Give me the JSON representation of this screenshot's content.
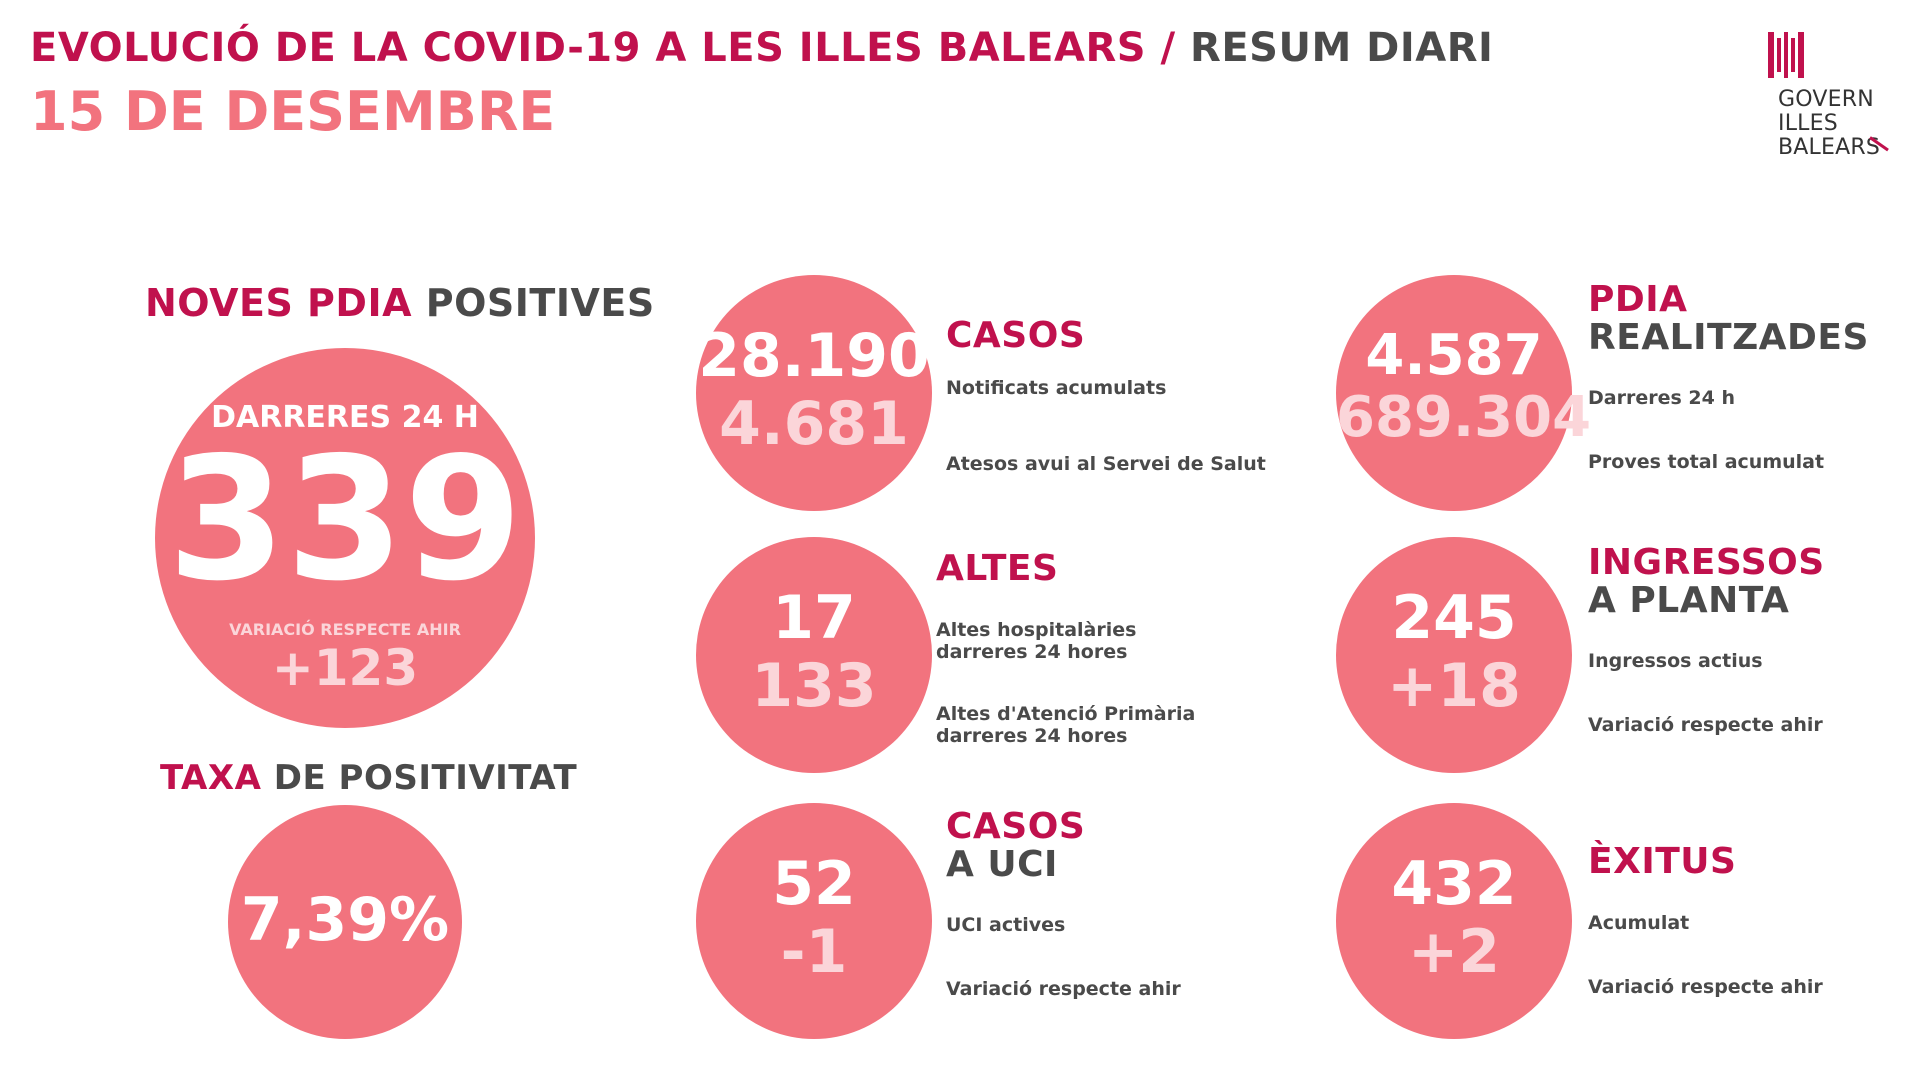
{
  "header": {
    "title_part1": "EVOLUCIÓ DE LA COVID-19 A LES ILLES BALEARS /",
    "title_part2": "RESUM DIARI",
    "date": "15 DE DESEMBRE"
  },
  "logo": {
    "line1": "GOVERN",
    "line2": "ILLES",
    "line3": "BALEARS",
    "icon": "coat-of-arms-stripes"
  },
  "colors": {
    "crimson": "#c0114d",
    "pink": "#f2737e",
    "light_pink": "#fbd5d9",
    "gray": "#4a4a4a"
  },
  "positives": {
    "heading_part1": "NOVES PDIA",
    "heading_part2": "POSITIVES",
    "subtitle": "DARRERES 24 H",
    "value": "339",
    "variation_label": "VARIACIÓ RESPECTE AHIR",
    "variation_value": "+123"
  },
  "positivity": {
    "heading_part1": "TAXA",
    "heading_part2": "DE POSITIVITAT",
    "value": "7,39%"
  },
  "cases": {
    "title": "CASOS",
    "value1": "28.190",
    "value2": "4.681",
    "label1": "Notificats acumulats",
    "label2": "Atesos avui al Servei de Salut"
  },
  "discharges": {
    "title": "ALTES",
    "value1": "17",
    "value2": "133",
    "label1_line1": "Altes hospitalàries",
    "label1_line2": "darreres 24 hores",
    "label2_line1": "Altes d'Atenció Primària",
    "label2_line2": "darreres 24 hores"
  },
  "icu": {
    "title_line1": "CASOS",
    "title_line2": "A UCI",
    "value1": "52",
    "value2": "-1",
    "label1": "UCI actives",
    "label2": "Variació respecte ahir"
  },
  "tests": {
    "title_line1": "PDIA",
    "title_line2": "REALITZADES",
    "value1": "4.587",
    "value2": "689.304",
    "label1": "Darreres 24 h",
    "label2": "Proves total acumulat"
  },
  "admissions": {
    "title_line1": "INGRESSOS",
    "title_line2": "A PLANTA",
    "value1": "245",
    "value2": "+18",
    "label1": "Ingressos actius",
    "label2": "Variació respecte ahir"
  },
  "deaths": {
    "title": "ÈXITUS",
    "value1": "432",
    "value2": "+2",
    "label1": "Acumulat",
    "label2": "Variació respecte ahir"
  }
}
